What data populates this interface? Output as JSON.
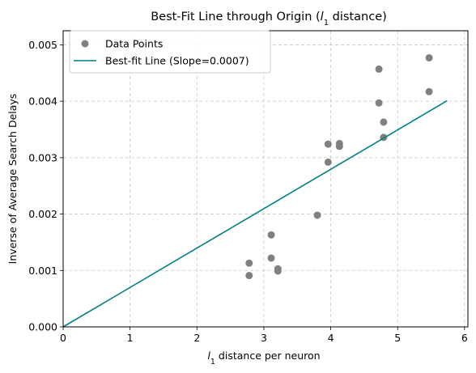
{
  "chart_data": {
    "type": "scatter",
    "title": "Best-Fit Line through Origin (l1 distance)",
    "title_parts": {
      "before": "Best-Fit Line through Origin (",
      "italic": "l",
      "sub": "1",
      "after": " distance)"
    },
    "xlabel": "l1 distance per neuron",
    "xlabel_parts": {
      "italic": "l",
      "sub": "1",
      "after": " distance per neuron"
    },
    "ylabel": "Inverse of Average Search Delays",
    "xlim": [
      0,
      6.05
    ],
    "ylim": [
      0,
      0.00525
    ],
    "x_ticks": [
      0,
      1,
      2,
      3,
      4,
      5,
      6
    ],
    "y_ticks": [
      "0.000",
      "0.001",
      "0.002",
      "0.003",
      "0.004",
      "0.005"
    ],
    "grid": true,
    "legend_position": "upper-left",
    "series": [
      {
        "name": "Data Points",
        "kind": "scatter",
        "color": "#808080",
        "points": [
          {
            "x": 2.78,
            "y": 0.00113
          },
          {
            "x": 2.78,
            "y": 0.00091
          },
          {
            "x": 3.11,
            "y": 0.00163
          },
          {
            "x": 3.11,
            "y": 0.00122
          },
          {
            "x": 3.21,
            "y": 0.00103
          },
          {
            "x": 3.21,
            "y": 0.00099
          },
          {
            "x": 3.8,
            "y": 0.00198
          },
          {
            "x": 3.96,
            "y": 0.00324
          },
          {
            "x": 3.96,
            "y": 0.00292
          },
          {
            "x": 4.13,
            "y": 0.00325
          },
          {
            "x": 4.13,
            "y": 0.0032
          },
          {
            "x": 4.72,
            "y": 0.00457
          },
          {
            "x": 4.72,
            "y": 0.00397
          },
          {
            "x": 4.79,
            "y": 0.00363
          },
          {
            "x": 4.79,
            "y": 0.00336
          },
          {
            "x": 5.47,
            "y": 0.00477
          },
          {
            "x": 5.47,
            "y": 0.00417
          }
        ]
      },
      {
        "name": "Best-fit Line (Slope=0.0007)",
        "kind": "line",
        "color": "#008080",
        "points": [
          {
            "x": 0,
            "y": 0
          },
          {
            "x": 5.74,
            "y": 0.00401
          }
        ]
      }
    ]
  }
}
